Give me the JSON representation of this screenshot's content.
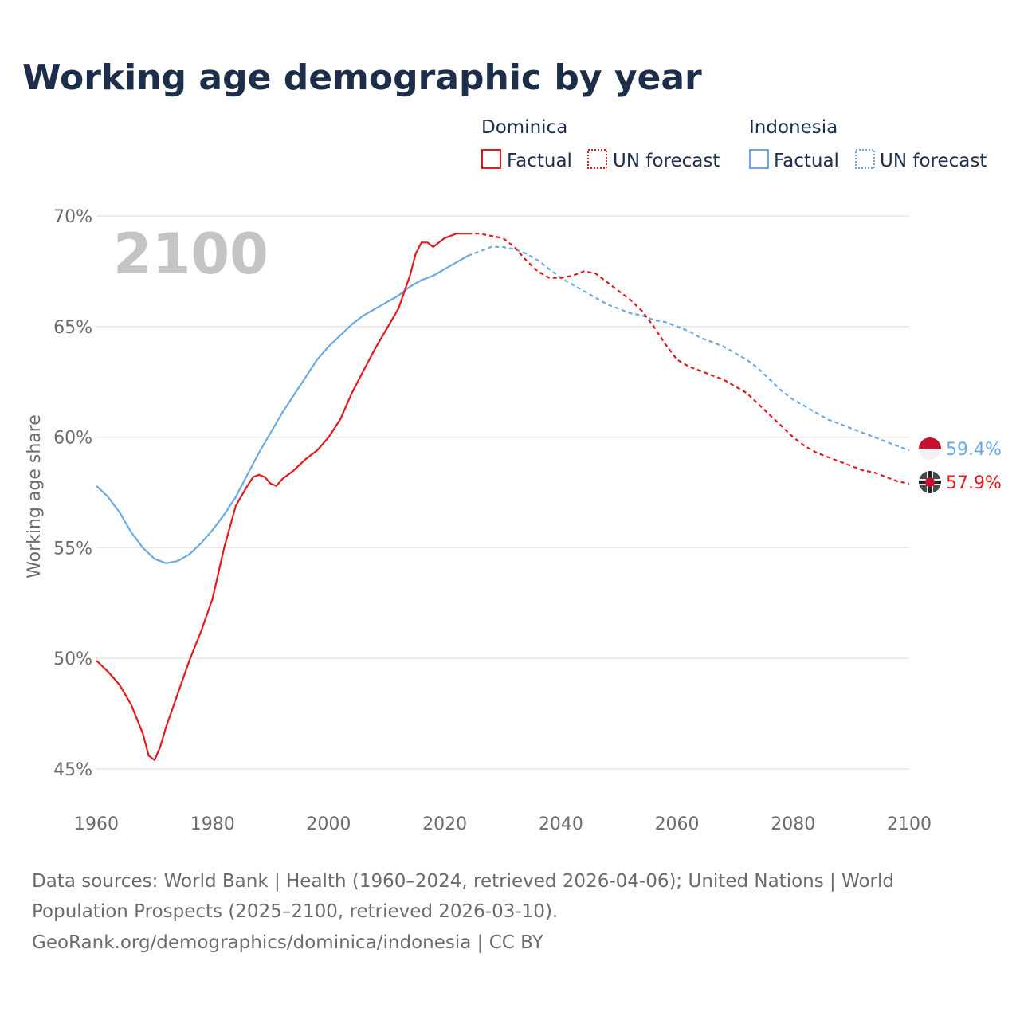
{
  "title": "Working age demographic by year",
  "year_label": "2100",
  "legend": {
    "groups": [
      {
        "name": "Dominica",
        "color": "#e4191b",
        "factual": "Factual",
        "forecast": "UN forecast"
      },
      {
        "name": "Indonesia",
        "color": "#6aaae4",
        "factual": "Factual",
        "forecast": "UN forecast"
      }
    ]
  },
  "end_labels": {
    "dominica": "57.9%",
    "indonesia": "59.4%"
  },
  "flag_icons": {
    "dominica": "dominica-flag-icon",
    "indonesia": "indonesia-flag-icon"
  },
  "source_lines": [
    "Data sources: World Bank | Health (1960–2024, retrieved 2026-04-06); United Nations | World",
    "Population Prospects (2025–2100, retrieved 2026-03-10).",
    "GeoRank.org/demographics/dominica/indonesia | CC BY"
  ],
  "chart_data": {
    "type": "line",
    "title": "Working age demographic by year",
    "xlabel": "",
    "ylabel": "Working age share",
    "xlim": [
      1960,
      2100
    ],
    "ylim": [
      45,
      70
    ],
    "x_ticks": [
      "1960",
      "1980",
      "2000",
      "2020",
      "2040",
      "2060",
      "2080",
      "2100"
    ],
    "y_ticks": [
      "45%",
      "50%",
      "55%",
      "60%",
      "65%",
      "70%"
    ],
    "forecast_start": 2024,
    "series": [
      {
        "name": "Dominica",
        "color": "#e4191b",
        "points": [
          [
            1960,
            49.9
          ],
          [
            1962,
            49.4
          ],
          [
            1964,
            48.8
          ],
          [
            1966,
            47.9
          ],
          [
            1968,
            46.6
          ],
          [
            1969,
            45.6
          ],
          [
            1970,
            45.4
          ],
          [
            1971,
            46.0
          ],
          [
            1972,
            46.9
          ],
          [
            1974,
            48.4
          ],
          [
            1976,
            49.9
          ],
          [
            1978,
            51.2
          ],
          [
            1980,
            52.7
          ],
          [
            1982,
            55.0
          ],
          [
            1984,
            56.9
          ],
          [
            1986,
            57.8
          ],
          [
            1987,
            58.2
          ],
          [
            1988,
            58.3
          ],
          [
            1989,
            58.2
          ],
          [
            1990,
            57.9
          ],
          [
            1991,
            57.8
          ],
          [
            1992,
            58.1
          ],
          [
            1994,
            58.5
          ],
          [
            1996,
            59.0
          ],
          [
            1998,
            59.4
          ],
          [
            2000,
            60.0
          ],
          [
            2002,
            60.8
          ],
          [
            2004,
            62.0
          ],
          [
            2006,
            63.0
          ],
          [
            2008,
            64.0
          ],
          [
            2010,
            64.9
          ],
          [
            2012,
            65.8
          ],
          [
            2014,
            67.3
          ],
          [
            2015,
            68.3
          ],
          [
            2016,
            68.8
          ],
          [
            2017,
            68.8
          ],
          [
            2018,
            68.6
          ],
          [
            2019,
            68.8
          ],
          [
            2020,
            69.0
          ],
          [
            2021,
            69.1
          ],
          [
            2022,
            69.2
          ],
          [
            2024,
            69.2
          ],
          [
            2026,
            69.2
          ],
          [
            2028,
            69.1
          ],
          [
            2030,
            69.0
          ],
          [
            2032,
            68.6
          ],
          [
            2034,
            68.0
          ],
          [
            2036,
            67.5
          ],
          [
            2038,
            67.2
          ],
          [
            2040,
            67.2
          ],
          [
            2042,
            67.3
          ],
          [
            2044,
            67.5
          ],
          [
            2046,
            67.4
          ],
          [
            2048,
            67.0
          ],
          [
            2050,
            66.6
          ],
          [
            2052,
            66.2
          ],
          [
            2054,
            65.7
          ],
          [
            2056,
            65.0
          ],
          [
            2058,
            64.2
          ],
          [
            2060,
            63.5
          ],
          [
            2062,
            63.2
          ],
          [
            2064,
            63.0
          ],
          [
            2066,
            62.8
          ],
          [
            2068,
            62.6
          ],
          [
            2070,
            62.3
          ],
          [
            2072,
            62.0
          ],
          [
            2074,
            61.5
          ],
          [
            2076,
            61.0
          ],
          [
            2078,
            60.5
          ],
          [
            2080,
            60.0
          ],
          [
            2082,
            59.6
          ],
          [
            2084,
            59.3
          ],
          [
            2086,
            59.1
          ],
          [
            2088,
            58.9
          ],
          [
            2090,
            58.7
          ],
          [
            2092,
            58.5
          ],
          [
            2094,
            58.4
          ],
          [
            2096,
            58.2
          ],
          [
            2098,
            58.0
          ],
          [
            2100,
            57.9
          ]
        ]
      },
      {
        "name": "Indonesia",
        "color": "#6aaae4",
        "points": [
          [
            1960,
            57.8
          ],
          [
            1962,
            57.3
          ],
          [
            1964,
            56.6
          ],
          [
            1966,
            55.7
          ],
          [
            1968,
            55.0
          ],
          [
            1970,
            54.5
          ],
          [
            1972,
            54.3
          ],
          [
            1974,
            54.4
          ],
          [
            1976,
            54.7
          ],
          [
            1978,
            55.2
          ],
          [
            1980,
            55.8
          ],
          [
            1982,
            56.5
          ],
          [
            1984,
            57.3
          ],
          [
            1986,
            58.3
          ],
          [
            1988,
            59.3
          ],
          [
            1990,
            60.2
          ],
          [
            1992,
            61.1
          ],
          [
            1994,
            61.9
          ],
          [
            1996,
            62.7
          ],
          [
            1998,
            63.5
          ],
          [
            2000,
            64.1
          ],
          [
            2002,
            64.6
          ],
          [
            2004,
            65.1
          ],
          [
            2006,
            65.5
          ],
          [
            2008,
            65.8
          ],
          [
            2010,
            66.1
          ],
          [
            2012,
            66.4
          ],
          [
            2014,
            66.8
          ],
          [
            2016,
            67.1
          ],
          [
            2018,
            67.3
          ],
          [
            2020,
            67.6
          ],
          [
            2022,
            67.9
          ],
          [
            2024,
            68.2
          ],
          [
            2026,
            68.4
          ],
          [
            2028,
            68.6
          ],
          [
            2030,
            68.6
          ],
          [
            2032,
            68.5
          ],
          [
            2034,
            68.3
          ],
          [
            2036,
            68.0
          ],
          [
            2038,
            67.6
          ],
          [
            2040,
            67.2
          ],
          [
            2042,
            66.9
          ],
          [
            2044,
            66.6
          ],
          [
            2046,
            66.3
          ],
          [
            2048,
            66.0
          ],
          [
            2050,
            65.8
          ],
          [
            2052,
            65.6
          ],
          [
            2054,
            65.5
          ],
          [
            2056,
            65.3
          ],
          [
            2058,
            65.2
          ],
          [
            2060,
            65.0
          ],
          [
            2062,
            64.8
          ],
          [
            2064,
            64.5
          ],
          [
            2066,
            64.3
          ],
          [
            2068,
            64.1
          ],
          [
            2070,
            63.8
          ],
          [
            2072,
            63.5
          ],
          [
            2074,
            63.1
          ],
          [
            2076,
            62.6
          ],
          [
            2078,
            62.1
          ],
          [
            2080,
            61.7
          ],
          [
            2082,
            61.4
          ],
          [
            2084,
            61.1
          ],
          [
            2086,
            60.8
          ],
          [
            2088,
            60.6
          ],
          [
            2090,
            60.4
          ],
          [
            2092,
            60.2
          ],
          [
            2094,
            60.0
          ],
          [
            2096,
            59.8
          ],
          [
            2098,
            59.6
          ],
          [
            2100,
            59.4
          ]
        ]
      }
    ]
  }
}
